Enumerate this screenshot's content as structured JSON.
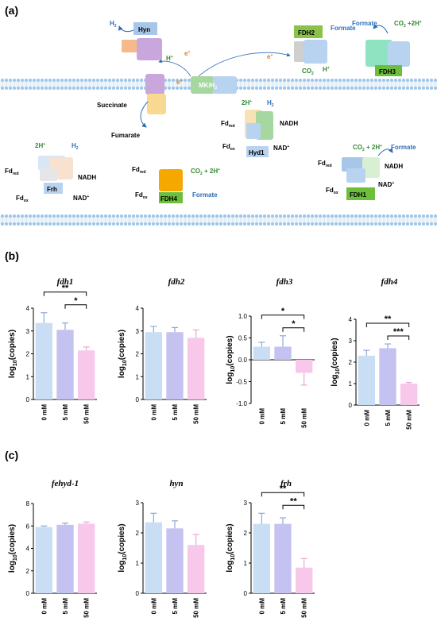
{
  "panels": {
    "a": "(a)",
    "b": "(b)",
    "c": "(c)"
  },
  "diagram": {
    "enzymes": {
      "hyn": "Hyn",
      "fdh2": "FDH2",
      "fdh3": "FDH3",
      "mkh2": "MK/H",
      "hyd1": "Hyd1",
      "frh": "Frh",
      "fdh4": "FDH4",
      "fdh1": "FDH1"
    },
    "electron": "e",
    "h2": "H",
    "h_plus": "H",
    "formate": "Formate",
    "co2": "CO",
    "co2_2h": "CO",
    "succinate": "Succinate",
    "fumarate": "Fumarate",
    "two_h_plus": "2H",
    "nadh": "NADH",
    "nad_plus": "NAD",
    "fd": "Fd",
    "red": "red",
    "ox": "ox",
    "plus": "+",
    "two": "2",
    "plus_2h": " + 2H",
    "plus2h_tight": " +2H"
  },
  "ylabel": {
    "prefix": "log",
    "sub": "10",
    "suffix": "(copies)"
  },
  "colors": {
    "bar0": "#c9ddf5",
    "bar1": "#c4c2f0",
    "bar2": "#f7c8ea",
    "axis": "#000000",
    "membrane": "#9ec6e8"
  },
  "chart_data": [
    {
      "type": "bar",
      "title": "fdh1",
      "categories": [
        "0 mM",
        "5 mM",
        "50 mM"
      ],
      "values": [
        3.35,
        3.05,
        2.15
      ],
      "errors": [
        0.45,
        0.3,
        0.15
      ],
      "ylim": [
        0,
        4
      ],
      "yticks": [
        0,
        1,
        2,
        3,
        4
      ],
      "sig": [
        {
          "from": 0,
          "to": 2,
          "label": "**"
        },
        {
          "from": 1,
          "to": 2,
          "label": "*"
        }
      ]
    },
    {
      "type": "bar",
      "title": "fdh2",
      "categories": [
        "0 mM",
        "5 mM",
        "50 mM"
      ],
      "values": [
        2.95,
        2.95,
        2.7
      ],
      "errors": [
        0.25,
        0.2,
        0.35
      ],
      "ylim": [
        0,
        4
      ],
      "yticks": [
        0,
        1,
        2,
        3,
        4
      ],
      "sig": []
    },
    {
      "type": "bar",
      "title": "fdh3",
      "categories": [
        "0 mM",
        "5 mM",
        "50 mM"
      ],
      "values": [
        0.3,
        0.3,
        -0.3
      ],
      "errors": [
        0.1,
        0.25,
        0.28
      ],
      "ylim": [
        -1,
        1
      ],
      "yticks": [
        -1.0,
        -0.5,
        0.0,
        0.5,
        1.0
      ],
      "tick_decimals": 1,
      "sig": [
        {
          "from": 0,
          "to": 2,
          "label": "*"
        },
        {
          "from": 1,
          "to": 2,
          "label": "*"
        }
      ]
    },
    {
      "type": "bar",
      "title": "fdh4",
      "categories": [
        "0 mM",
        "5 mM",
        "50 mM"
      ],
      "values": [
        2.3,
        2.65,
        1.0
      ],
      "errors": [
        0.25,
        0.2,
        0.05
      ],
      "ylim": [
        0,
        4
      ],
      "yticks": [
        0,
        1,
        2,
        3,
        4
      ],
      "sig": [
        {
          "from": 0,
          "to": 2,
          "label": "**"
        },
        {
          "from": 1,
          "to": 2,
          "label": "***"
        }
      ]
    },
    {
      "type": "bar",
      "title": "fehyd-1",
      "categories": [
        "0 mM",
        "5 mM",
        "50 mM"
      ],
      "values": [
        5.9,
        6.1,
        6.2
      ],
      "errors": [
        0.1,
        0.15,
        0.15
      ],
      "ylim": [
        0,
        8
      ],
      "yticks": [
        0,
        2,
        4,
        6,
        8
      ],
      "sig": []
    },
    {
      "type": "bar",
      "title": "hyn",
      "categories": [
        "0 mM",
        "5 mM",
        "50 mM"
      ],
      "values": [
        2.35,
        2.15,
        1.6
      ],
      "errors": [
        0.3,
        0.25,
        0.35
      ],
      "ylim": [
        0,
        3
      ],
      "yticks": [
        0,
        1,
        2,
        3
      ],
      "sig": []
    },
    {
      "type": "bar",
      "title": "frh",
      "categories": [
        "0 mM",
        "5 mM",
        "50 mM"
      ],
      "values": [
        2.3,
        2.3,
        0.85
      ],
      "errors": [
        0.35,
        0.2,
        0.3
      ],
      "ylim": [
        0,
        3
      ],
      "yticks": [
        0,
        1,
        2,
        3
      ],
      "sig": [
        {
          "from": 0,
          "to": 2,
          "label": "**"
        },
        {
          "from": 1,
          "to": 2,
          "label": "**"
        }
      ]
    }
  ]
}
